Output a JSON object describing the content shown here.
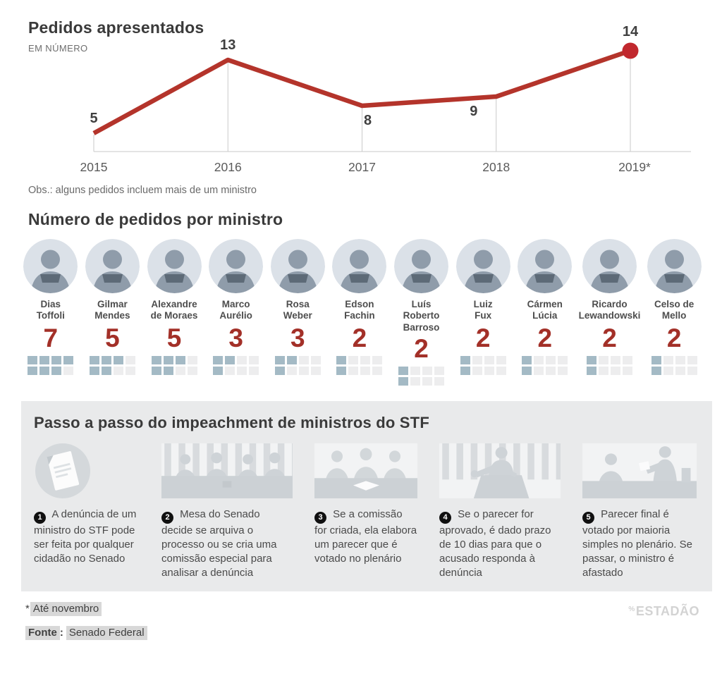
{
  "chart_data": {
    "type": "line",
    "title": "Pedidos apresentados",
    "subtitle": "EM NÚMERO",
    "x": [
      "2015",
      "2016",
      "2017",
      "2018",
      "2019*"
    ],
    "values": [
      5,
      13,
      8,
      9,
      14
    ],
    "label_positions": [
      "above",
      "above",
      "below",
      "below",
      "above"
    ],
    "end_marker_on_last_point": true,
    "grid": "vertical-drop-lines",
    "line_color": "#b4342b",
    "marker_color": "#c1282e",
    "value_label_color": "#3f3f3f",
    "axis_color": "#c9c9c9",
    "tick_label_color": "#5a5a5a"
  },
  "notes": {
    "chart_note": "Obs.: alguns pedidos incluem mais de um ministro"
  },
  "ministers": {
    "title": "Número de pedidos por ministro",
    "waffle_max": 8,
    "filled_color": "#a4bac5",
    "empty_color": "#ededee",
    "count_color": "#a33028",
    "items": [
      {
        "name": "Dias Toffoli",
        "lines": [
          "Dias",
          "Toffoli"
        ],
        "count": 7
      },
      {
        "name": "Gilmar Mendes",
        "lines": [
          "Gilmar",
          "Mendes"
        ],
        "count": 5
      },
      {
        "name": "Alexandre de Moraes",
        "lines": [
          "Alexandre",
          "de Moraes"
        ],
        "count": 5
      },
      {
        "name": "Marco Aurélio",
        "lines": [
          "Marco",
          "Aurélio"
        ],
        "count": 3
      },
      {
        "name": "Rosa Weber",
        "lines": [
          "Rosa",
          "Weber"
        ],
        "count": 3
      },
      {
        "name": "Edson Fachin",
        "lines": [
          "Edson",
          "Fachin"
        ],
        "count": 2
      },
      {
        "name": "Luís Roberto Barroso",
        "lines": [
          "Luís Roberto",
          "Barroso"
        ],
        "count": 2
      },
      {
        "name": "Luiz Fux",
        "lines": [
          "Luiz",
          "Fux"
        ],
        "count": 2
      },
      {
        "name": "Cármen Lúcia",
        "lines": [
          "Cármen",
          "Lúcia"
        ],
        "count": 2
      },
      {
        "name": "Ricardo Lewandowski",
        "lines": [
          "Ricardo",
          "Lewandowski"
        ],
        "count": 2
      },
      {
        "name": "Celso de Mello",
        "lines": [
          "Celso de",
          "Mello"
        ],
        "count": 2
      }
    ]
  },
  "steps": {
    "title": "Passo a passo do impeachment de ministros do STF",
    "items": [
      {
        "number": "1",
        "icon": "denuncia-document-icon",
        "text": "A denúncia de um ministro do STF pode ser feita por qualquer cidadão no Senado"
      },
      {
        "number": "2",
        "icon": "mesa-senado-icon",
        "text": "Mesa do Senado decide se arquiva o processo ou se cria uma comissão especial para analisar a denúncia"
      },
      {
        "number": "3",
        "icon": "comissao-parecer-icon",
        "text": "Se a comissão for criada, ela elabora um parecer que é votado no plenário"
      },
      {
        "number": "4",
        "icon": "orador-tribuna-icon",
        "text": "Se o parecer for aprovado, é dado prazo de 10 dias para que o acusado responda à denúncia"
      },
      {
        "number": "5",
        "icon": "votacao-plenario-icon",
        "text": "Parecer final é votado por maioria simples no plenário. Se passar, o ministro é afastado"
      }
    ]
  },
  "footer": {
    "footnote_mark": "*",
    "footnote": "Até novembro",
    "source_label": "Fonte",
    "colon": ":",
    "source": "Senado Federal",
    "logo_mark": "%",
    "logo_text": "ESTADÃO"
  }
}
